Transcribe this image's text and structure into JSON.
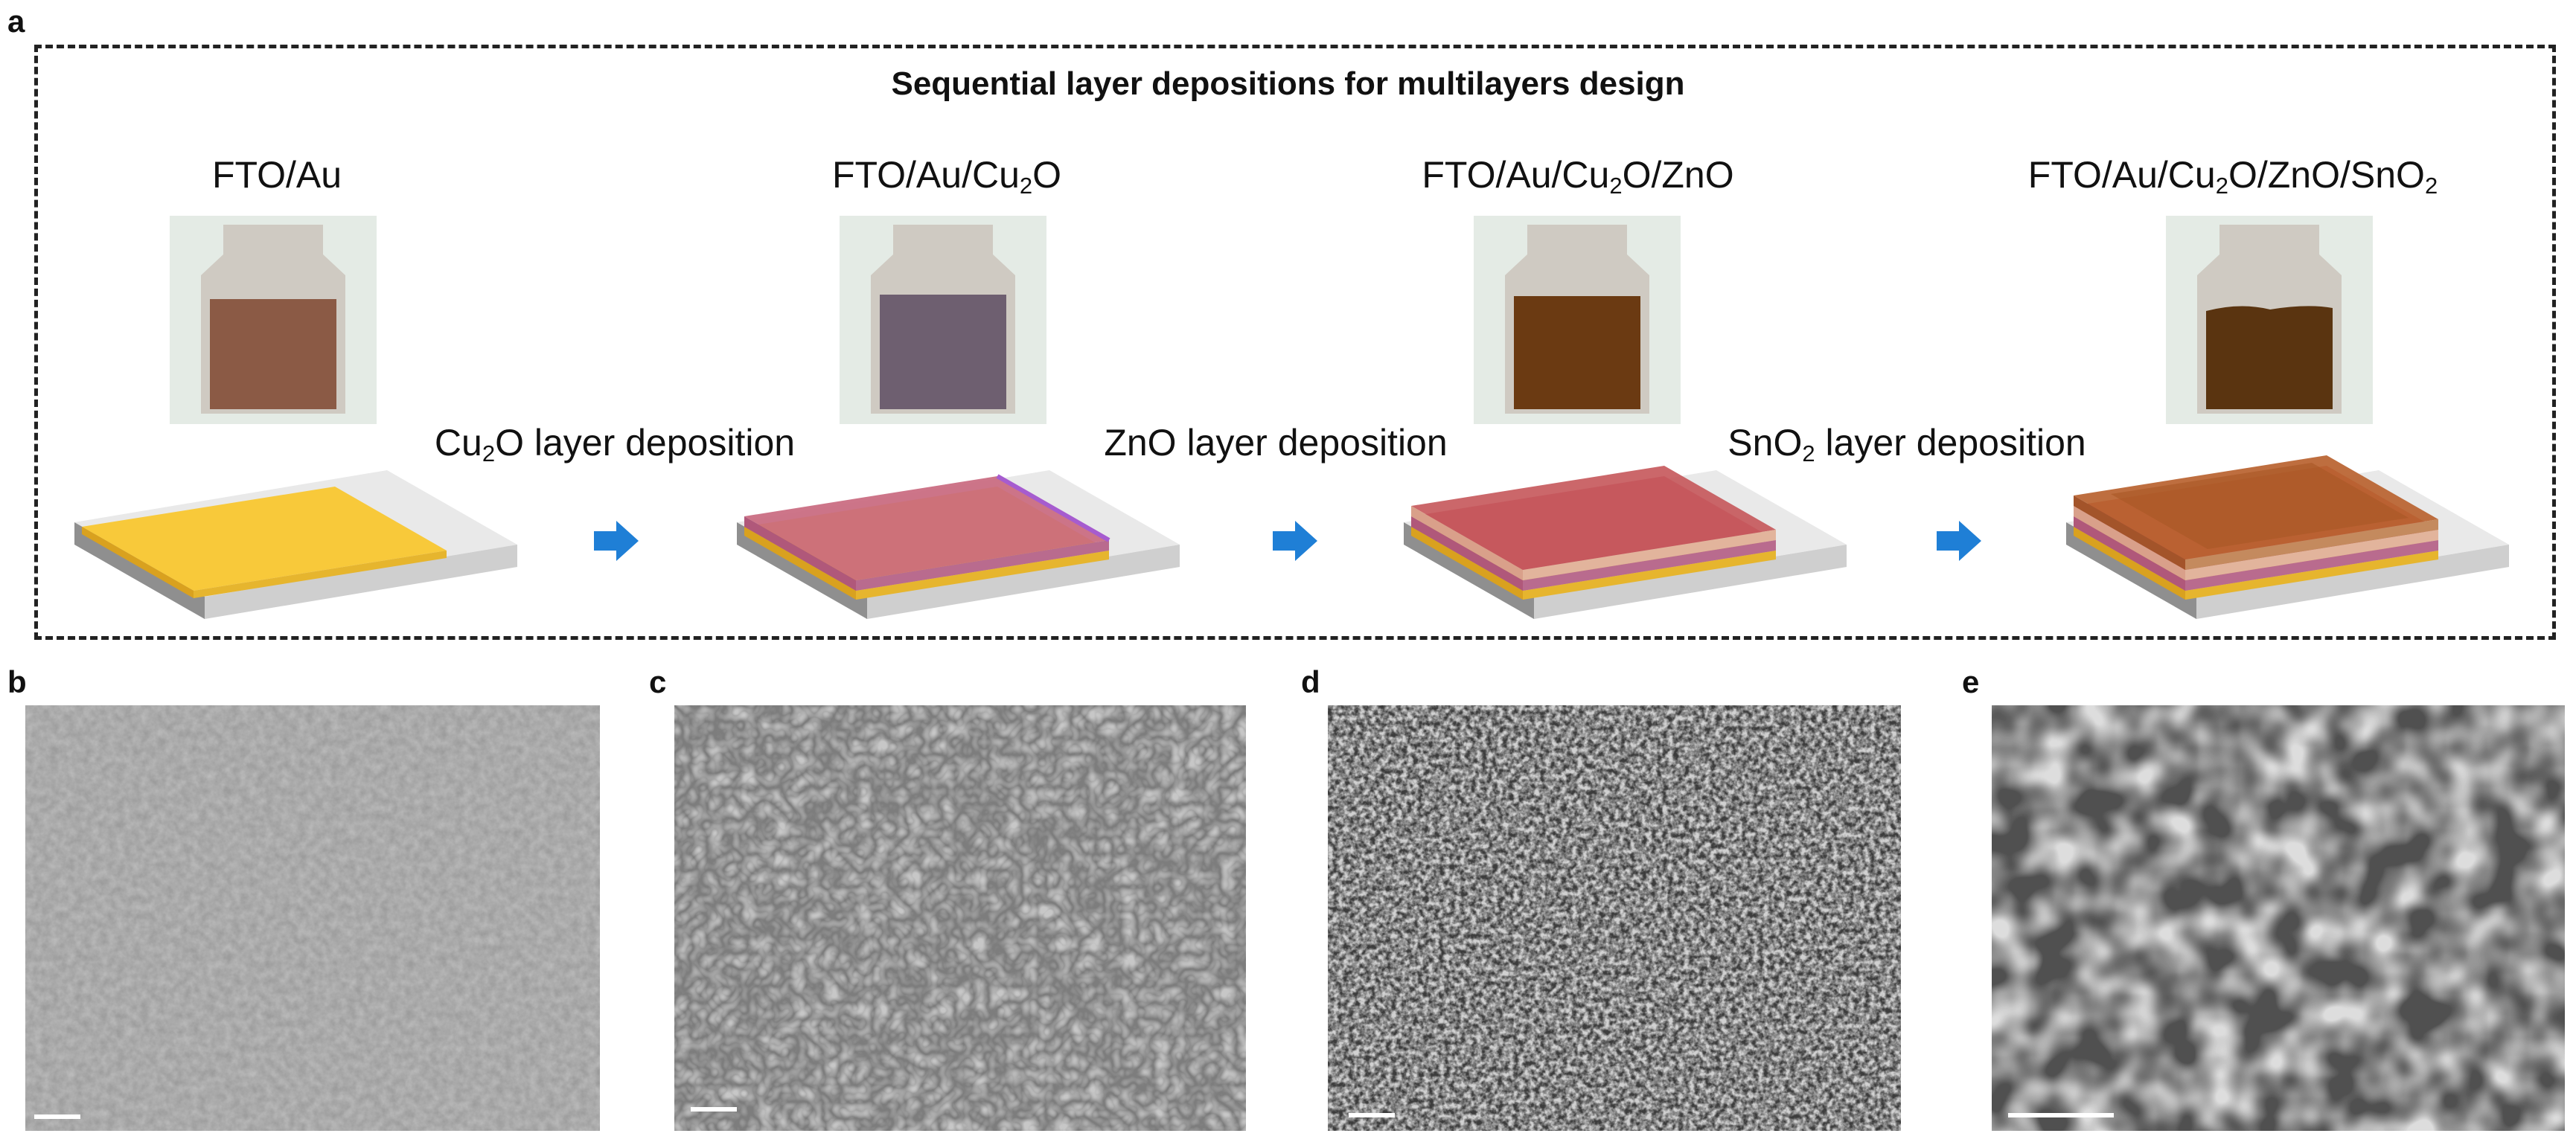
{
  "panel_letters": {
    "a": "a",
    "b": "b",
    "c": "c",
    "d": "d",
    "e": "e"
  },
  "title": "Sequential layer depositions for multilayers design",
  "samples": [
    {
      "label": {
        "base": "FTO/Au",
        "sub": "",
        "rest": ""
      },
      "photo_color": "#8b5a45"
    },
    {
      "label": {
        "base": "FTO/Au/Cu",
        "sub": "2",
        "rest": "O"
      },
      "photo_color": "#6e5f70"
    },
    {
      "label": {
        "base": "FTO/Au/Cu",
        "sub": "2",
        "rest": "O/ZnO"
      },
      "photo_color": "#6b3a12"
    },
    {
      "label": {
        "base": "FTO/Au/Cu",
        "sub": "2",
        "rest": "O/ZnO/SnO",
        "sub2": "2"
      },
      "photo_color": "#5a3410"
    }
  ],
  "steps": [
    {
      "base": "Cu",
      "sub": "2",
      "rest": "O layer deposition"
    },
    {
      "base": "ZnO layer deposition",
      "sub": "",
      "rest": ""
    },
    {
      "base": "SnO",
      "sub": "2",
      "rest": " layer deposition"
    }
  ],
  "colors": {
    "au": "#f8c93a",
    "cu2o": "#c9697f",
    "zno": "#c5575a",
    "sno2": "#b8622f",
    "arrow": "#1f7fd6"
  }
}
